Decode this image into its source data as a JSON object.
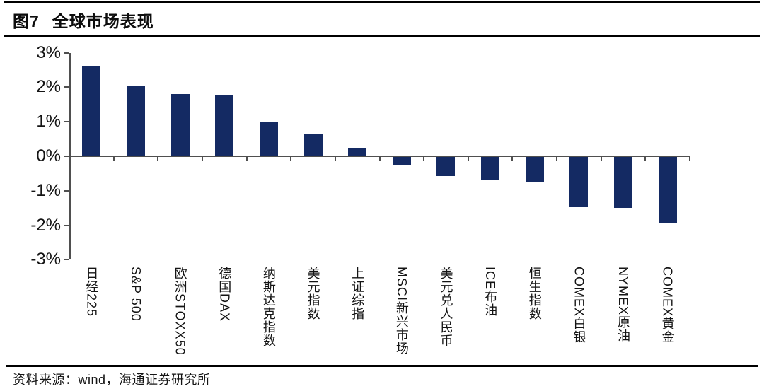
{
  "header": {
    "figure_label": "图7",
    "title": "全球市场表现"
  },
  "footer": {
    "source_text": "资料来源：wind，海通证券研究所"
  },
  "chart_data": {
    "type": "bar",
    "title": "全球市场表现",
    "categories": [
      "日经225",
      "S&P 500",
      "欧洲STOXX50",
      "德国DAX",
      "纳斯达克指数",
      "美元指数",
      "上证综指",
      "MSCI新兴市场",
      "美元兑人民币",
      "ICE布油",
      "恒生指数",
      "COMEX白银",
      "NYMEX原油",
      "COMEX黄金"
    ],
    "values": [
      2.62,
      2.02,
      1.81,
      1.79,
      1.01,
      0.64,
      0.25,
      -0.25,
      -0.55,
      -0.67,
      -0.71,
      -1.45,
      -1.48,
      -1.92
    ],
    "unit": "%",
    "xlabel": "",
    "ylabel": "",
    "ylim": [
      -3,
      3
    ],
    "yticks": [
      3,
      2,
      1,
      0,
      -1,
      -2,
      -3
    ],
    "ytick_labels": [
      "3%",
      "2%",
      "1%",
      "0%",
      "-1%",
      "-2%",
      "-3%"
    ],
    "bar_color": "#142a63",
    "axis_color": "#4f4f4f",
    "grid": false,
    "legend": null
  }
}
